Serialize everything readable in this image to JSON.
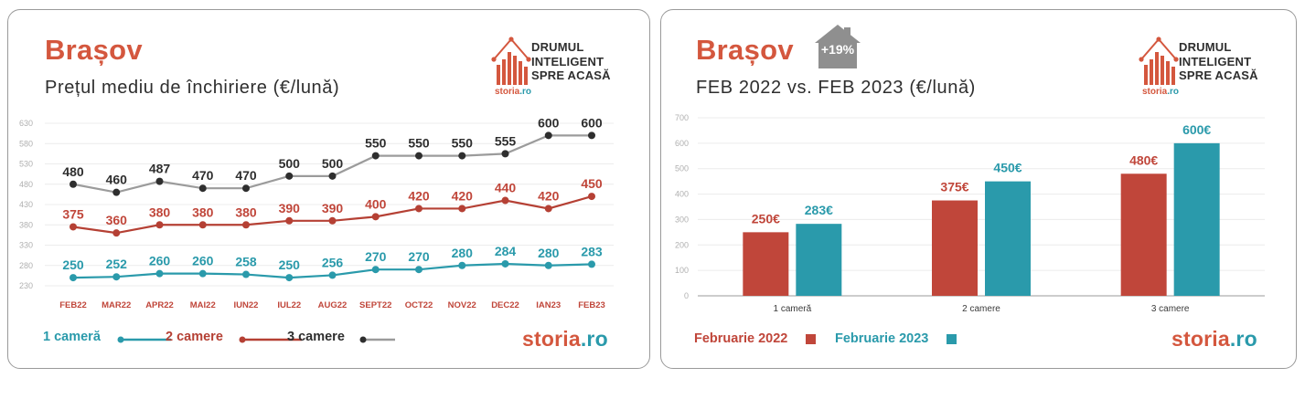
{
  "left_card": {
    "city": "Brașov",
    "subtitle": "Prețul mediu de închiriere (€/lună)",
    "brand_lines": [
      "DRUMUL",
      "INTELIGENT",
      "SPRE ACASĂ"
    ],
    "logo_small_main": "storia",
    "logo_small_ro": ".ro",
    "logo_big_main": "storia",
    "logo_big_ro": ".ro",
    "legend": [
      "1 cameră",
      "2 camere",
      "3 camere"
    ]
  },
  "right_card": {
    "city": "Brașov",
    "badge": "+19%",
    "subtitle": "FEB 2022 vs. FEB 2023 (€/lună)",
    "brand_lines": [
      "DRUMUL",
      "INTELIGENT",
      "SPRE ACASĂ"
    ],
    "logo_small_main": "storia",
    "logo_small_ro": ".ro",
    "logo_big_main": "storia",
    "logo_big_ro": ".ro",
    "legend": [
      "Februarie 2022",
      "Februarie 2023"
    ]
  },
  "colors": {
    "accent": "#d4573e",
    "one_room": "#2a9aab",
    "two_rooms": "#b54034",
    "three_rooms": "#9b9b9b",
    "bar_2022": "#c0463a",
    "bar_2023": "#2a9aab"
  },
  "chart_data": [
    {
      "type": "line",
      "title": "Prețul mediu de închiriere (€/lună)",
      "categories": [
        "FEB22",
        "MAR22",
        "APR22",
        "MAI22",
        "IUN22",
        "IUL22",
        "AUG22",
        "SEPT22",
        "OCT22",
        "NOV22",
        "DEC22",
        "IAN23",
        "FEB23"
      ],
      "yticks": [
        "230",
        "280",
        "330",
        "380",
        "430",
        "480",
        "530",
        "580",
        "630"
      ],
      "ylim": [
        230,
        630
      ],
      "grid": true,
      "legend_position": "bottom",
      "series": [
        {
          "name": "1 cameră",
          "values": [
            250,
            252,
            260,
            260,
            258,
            250,
            256,
            270,
            270,
            280,
            284,
            280,
            283
          ]
        },
        {
          "name": "2 camere",
          "values": [
            375,
            360,
            380,
            380,
            380,
            390,
            390,
            400,
            420,
            420,
            440,
            420,
            450
          ]
        },
        {
          "name": "3 camere",
          "values": [
            480,
            460,
            487,
            470,
            470,
            500,
            500,
            550,
            550,
            550,
            555,
            600,
            600
          ]
        }
      ]
    },
    {
      "type": "bar",
      "title": "FEB 2022 vs. FEB 2023 (€/lună)",
      "categories": [
        "1 cameră",
        "2 camere",
        "3 camere"
      ],
      "yticks": [
        "0",
        "100",
        "200",
        "300",
        "400",
        "500",
        "600",
        "700"
      ],
      "ylim": [
        0,
        700
      ],
      "grid": true,
      "legend_position": "bottom-left",
      "series": [
        {
          "name": "Februarie 2022",
          "values": [
            250,
            375,
            480
          ],
          "labels": [
            "250€",
            "375€",
            "480€"
          ]
        },
        {
          "name": "Februarie 2023",
          "values": [
            283,
            450,
            600
          ],
          "labels": [
            "283€",
            "450€",
            "600€"
          ]
        }
      ]
    }
  ]
}
